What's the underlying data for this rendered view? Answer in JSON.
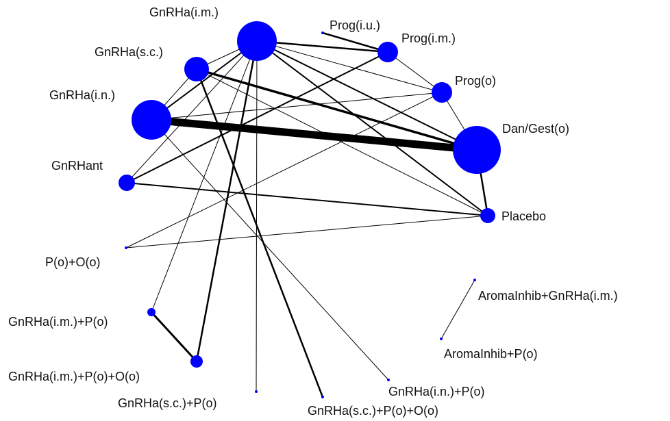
{
  "network": {
    "node_color": "#0000ff",
    "edge_color": "#000000",
    "nodes": [
      {
        "id": "gnrha_im",
        "label": "GnRHa(i.m.)"
      },
      {
        "id": "gnrha_sc",
        "label": "GnRHa(s.c.)"
      },
      {
        "id": "gnrha_in",
        "label": "GnRHa(i.n.)"
      },
      {
        "id": "gnrhant",
        "label": "GnRHant"
      },
      {
        "id": "prog_iu",
        "label": "Prog(i.u.)"
      },
      {
        "id": "prog_im",
        "label": "Prog(i.m.)"
      },
      {
        "id": "prog_o",
        "label": "Prog(o)"
      },
      {
        "id": "dan_gest",
        "label": "Dan/Gest(o)"
      },
      {
        "id": "placebo",
        "label": "Placebo"
      },
      {
        "id": "po_oo",
        "label": "P(o)+O(o)"
      },
      {
        "id": "gnrha_im_po",
        "label": "GnRHa(i.m.)+P(o)"
      },
      {
        "id": "gnrha_im_po_oo",
        "label": "GnRHa(i.m.)+P(o)+O(o)"
      },
      {
        "id": "gnrha_sc_po",
        "label": "GnRHa(s.c.)+P(o)"
      },
      {
        "id": "gnrha_in_po",
        "label": "GnRHa(i.n.)+P(o)"
      },
      {
        "id": "gnrha_sc_po_oo",
        "label": "GnRHa(s.c.)+P(o)+O(o)"
      },
      {
        "id": "aroma_gnrha",
        "label": "AromaInhib+GnRHa(i.m.)"
      },
      {
        "id": "aroma_po",
        "label": "AromaInhib+P(o)"
      }
    ],
    "edges": [
      {
        "source": "gnrha_in",
        "target": "dan_gest"
      },
      {
        "source": "gnrha_im",
        "target": "prog_im"
      },
      {
        "source": "gnrha_im",
        "target": "prog_o"
      },
      {
        "source": "gnrha_im",
        "target": "dan_gest"
      },
      {
        "source": "gnrha_im",
        "target": "placebo"
      },
      {
        "source": "gnrha_im",
        "target": "gnrha_sc"
      },
      {
        "source": "gnrha_im",
        "target": "gnrha_in"
      },
      {
        "source": "gnrha_im",
        "target": "gnrhant"
      },
      {
        "source": "gnrha_im",
        "target": "gnrha_im_po"
      },
      {
        "source": "gnrha_im",
        "target": "gnrha_sc_po"
      },
      {
        "source": "gnrha_im",
        "target": "gnrha_im_po_oo"
      },
      {
        "source": "gnrha_sc",
        "target": "dan_gest"
      },
      {
        "source": "gnrha_sc",
        "target": "gnrha_in"
      },
      {
        "source": "gnrha_sc",
        "target": "gnrha_sc_po_oo"
      },
      {
        "source": "gnrha_sc",
        "target": "placebo"
      },
      {
        "source": "gnrha_in",
        "target": "prog_o"
      },
      {
        "source": "gnrha_in",
        "target": "gnrha_in_po"
      },
      {
        "source": "prog_iu",
        "target": "prog_im"
      },
      {
        "source": "prog_im",
        "target": "prog_o"
      },
      {
        "source": "prog_im",
        "target": "gnrhant"
      },
      {
        "source": "prog_o",
        "target": "dan_gest"
      },
      {
        "source": "prog_o",
        "target": "po_oo"
      },
      {
        "source": "dan_gest",
        "target": "placebo"
      },
      {
        "source": "gnrhant",
        "target": "placebo"
      },
      {
        "source": "po_oo",
        "target": "placebo"
      },
      {
        "source": "gnrha_im_po",
        "target": "gnrha_im_po_oo"
      },
      {
        "source": "aroma_gnrha",
        "target": "aroma_po"
      }
    ]
  }
}
